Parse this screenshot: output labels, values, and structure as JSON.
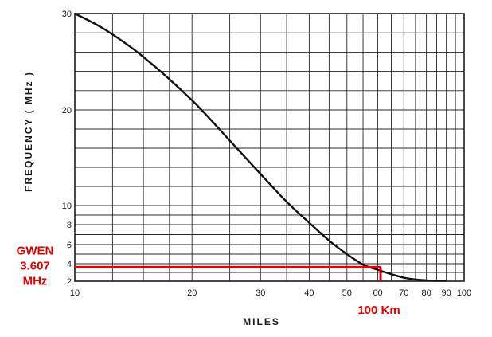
{
  "chart_data": {
    "type": "line",
    "x_scale": "log",
    "y_scale": "custom-nonlinear",
    "xlabel": "MILES",
    "ylabel": "FREQUENCY ( MHz )",
    "xlim": [
      10,
      100
    ],
    "ylim": [
      2,
      30
    ],
    "x_ticks": [
      10,
      20,
      30,
      40,
      50,
      60,
      70,
      80,
      90,
      100
    ],
    "x_tick_labels": [
      "10",
      "20",
      "30",
      "40",
      "50",
      "60",
      "70",
      "80",
      "90",
      "100"
    ],
    "y_ticks": [
      2,
      4,
      6,
      8,
      10,
      20,
      30
    ],
    "y_tick_labels": [
      "2",
      "4",
      "6",
      "8",
      "10",
      "20",
      "30"
    ],
    "grid": true,
    "series": [
      {
        "x": [
          10,
          12,
          15,
          20,
          25,
          30,
          35,
          40,
          45,
          50,
          55,
          60,
          65,
          70,
          75,
          80,
          85,
          90
        ],
        "y": [
          30,
          28.3,
          25.5,
          21,
          16.8,
          13.3,
          10.4,
          8.2,
          6.4,
          5.0,
          3.9,
          3.3,
          2.8,
          2.4,
          2.2,
          2.1,
          2.05,
          2.05
        ]
      }
    ],
    "annotations": [
      {
        "id": "gwen",
        "lines": [
          "GWEN",
          "3.607",
          "MHz"
        ],
        "y": 3.607,
        "x": 61,
        "color": "#e00000"
      },
      {
        "id": "km",
        "text": "100 Km",
        "x": 61,
        "color": "#e00000"
      }
    ]
  }
}
